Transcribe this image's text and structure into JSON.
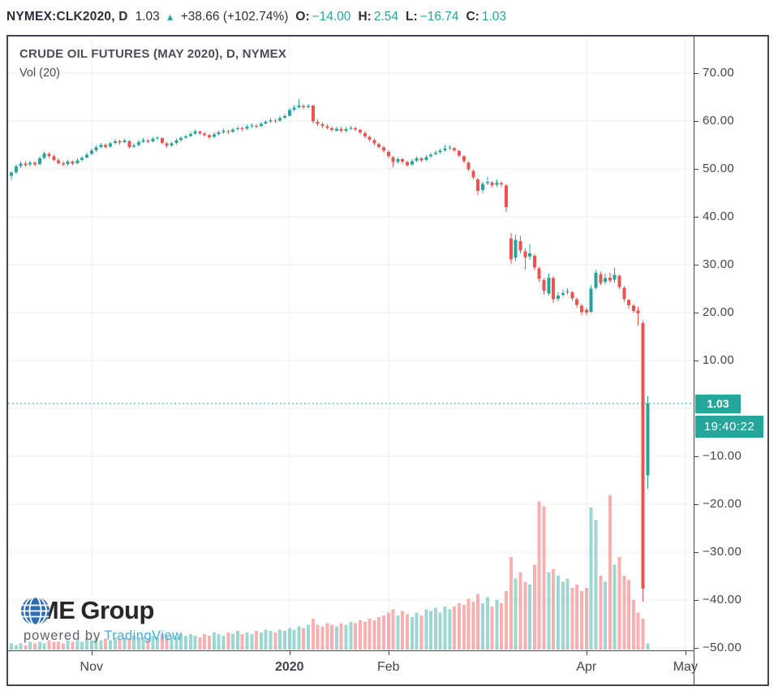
{
  "header": {
    "symbol_interval": "NYMEX:CLK2020, D",
    "last_price": "1.03",
    "up_arrow": "▲",
    "change": "+38.66 (+102.74%)",
    "ohlc": [
      {
        "label": "O:",
        "value": "−14.00"
      },
      {
        "label": "H:",
        "value": "2.54"
      },
      {
        "label": "L:",
        "value": "−16.74"
      },
      {
        "label": "C:",
        "value": "1.03"
      }
    ]
  },
  "legend": {
    "title": "CRUDE OIL FUTURES (MAY 2020), D, NYMEX",
    "indicator": "Vol (20)"
  },
  "price_axis": {
    "current_price_label": "1.03",
    "countdown": "19:40:22",
    "ticks": [
      {
        "label": "70.00",
        "price": 70
      },
      {
        "label": "60.00",
        "price": 60
      },
      {
        "label": "50.00",
        "price": 50
      },
      {
        "label": "40.00",
        "price": 40
      },
      {
        "label": "30.00",
        "price": 30
      },
      {
        "label": "20.00",
        "price": 20
      },
      {
        "label": "10.00",
        "price": 10
      },
      {
        "label": "−10.00",
        "price": -10
      },
      {
        "label": "−20.00",
        "price": -20
      },
      {
        "label": "−30.00",
        "price": -30
      },
      {
        "label": "−40.00",
        "price": -40
      },
      {
        "label": "−50.00",
        "price": -50
      }
    ]
  },
  "time_axis": {
    "ticks": [
      {
        "label": "Nov",
        "i": 17,
        "bold": false
      },
      {
        "label": "2020",
        "i": 59,
        "bold": true
      },
      {
        "label": "Feb",
        "i": 80,
        "bold": false
      },
      {
        "label": "Apr",
        "i": 122,
        "bold": false
      },
      {
        "label": "May",
        "i": 143,
        "bold": false
      }
    ]
  },
  "branding": {
    "cme": "CME",
    "group": "Group",
    "powered_by": "powered by",
    "vendor": "TradingView"
  },
  "colors": {
    "up": "#26a69a",
    "down": "#ef5350",
    "volume_up": "#26a69a",
    "volume_down": "#ef5350",
    "grid": "#e8eef4",
    "frame": "#434651",
    "text_dark": "#2a2e39",
    "axis_text": "#42464e",
    "accent_teal": "#26a69a",
    "tv_blue": "#3cb1e3",
    "cme_blue": "#2e6cb6"
  },
  "chart_data": {
    "type": "candlestick+volume",
    "symbol": "NYMEX:CLK2020",
    "title": "CRUDE OIL FUTURES (MAY 2020), D, NYMEX",
    "interval": "D",
    "date_range": "Oct 2019 – Apr 21 2020",
    "x_axis_labels": [
      "Nov",
      "2020",
      "Feb",
      "Apr",
      "May"
    ],
    "y_axis_range": [
      -52,
      73
    ],
    "grid": true,
    "current_price": 1.03,
    "current_price_line_style": "dashed",
    "countdown": "19:40:22",
    "session_ohlc": {
      "open": -14.0,
      "high": 2.54,
      "low": -16.74,
      "close": 1.03,
      "change": 38.66,
      "change_pct": 102.74
    },
    "volume_ma_label": "Vol (20)",
    "candles_format": [
      "open",
      "high",
      "low",
      "close",
      "volume_rel_0_100"
    ],
    "candles": [
      [
        48.6,
        49.5,
        47.7,
        49.2,
        4
      ],
      [
        49.3,
        50.9,
        49.0,
        50.5,
        3
      ],
      [
        50.6,
        51.5,
        50.2,
        51.1,
        4
      ],
      [
        51.1,
        51.6,
        50.4,
        50.8,
        3
      ],
      [
        50.9,
        51.7,
        50.5,
        51.3,
        5
      ],
      [
        51.3,
        51.6,
        50.5,
        50.9,
        4
      ],
      [
        51.0,
        52.6,
        50.8,
        52.2,
        5
      ],
      [
        52.3,
        53.6,
        52.0,
        53.2,
        4
      ],
      [
        53.1,
        53.5,
        52.3,
        52.7,
        6
      ],
      [
        52.6,
        53.0,
        51.6,
        51.9,
        5
      ],
      [
        51.8,
        52.2,
        50.9,
        51.2,
        5
      ],
      [
        51.2,
        51.6,
        50.5,
        50.9,
        4
      ],
      [
        51.0,
        51.9,
        50.7,
        51.5,
        6
      ],
      [
        51.5,
        51.8,
        50.8,
        51.1,
        5
      ],
      [
        51.2,
        52.2,
        51.0,
        51.8,
        6
      ],
      [
        51.9,
        52.7,
        51.6,
        52.3,
        5
      ],
      [
        52.4,
        53.4,
        52.1,
        53.0,
        7
      ],
      [
        53.1,
        54.2,
        52.9,
        53.8,
        6
      ],
      [
        53.9,
        54.9,
        53.6,
        54.5,
        7
      ],
      [
        54.6,
        55.4,
        54.3,
        55.0,
        6
      ],
      [
        55.0,
        55.3,
        54.2,
        54.6,
        7
      ],
      [
        54.7,
        55.7,
        54.4,
        55.3,
        6
      ],
      [
        55.4,
        56.2,
        55.1,
        55.8,
        8
      ],
      [
        55.8,
        56.1,
        55.1,
        55.5,
        7
      ],
      [
        55.6,
        56.3,
        55.3,
        55.9,
        8
      ],
      [
        55.8,
        56.0,
        54.2,
        54.6,
        7
      ],
      [
        54.7,
        55.3,
        54.3,
        54.9,
        9
      ],
      [
        55.0,
        56.0,
        54.7,
        55.6,
        8
      ],
      [
        55.7,
        56.4,
        55.4,
        56.0,
        8
      ],
      [
        55.9,
        56.2,
        55.3,
        55.7,
        7
      ],
      [
        55.8,
        56.7,
        55.5,
        56.3,
        9
      ],
      [
        56.4,
        56.9,
        56.0,
        56.5,
        8
      ],
      [
        56.4,
        56.6,
        55.1,
        55.4,
        10
      ],
      [
        55.3,
        55.6,
        54.4,
        54.8,
        9
      ],
      [
        54.9,
        55.7,
        54.6,
        55.3,
        9
      ],
      [
        55.4,
        56.3,
        55.1,
        55.9,
        8
      ],
      [
        56.0,
        56.8,
        55.7,
        56.4,
        10
      ],
      [
        56.5,
        57.2,
        56.2,
        56.8,
        9
      ],
      [
        56.9,
        57.7,
        56.6,
        57.3,
        10
      ],
      [
        57.4,
        58.2,
        57.1,
        57.8,
        9
      ],
      [
        57.8,
        58.0,
        57.1,
        57.5,
        8
      ],
      [
        57.4,
        57.7,
        56.7,
        57.0,
        10
      ],
      [
        57.0,
        57.3,
        56.2,
        56.6,
        9
      ],
      [
        56.7,
        57.6,
        56.4,
        57.2,
        11
      ],
      [
        57.3,
        58.0,
        57.0,
        57.6,
        10
      ],
      [
        57.7,
        58.4,
        57.4,
        58.0,
        9
      ],
      [
        57.9,
        58.2,
        57.3,
        57.7,
        11
      ],
      [
        57.8,
        58.6,
        57.5,
        58.2,
        10
      ],
      [
        58.3,
        58.9,
        58.0,
        58.5,
        12
      ],
      [
        58.5,
        58.8,
        57.9,
        58.3,
        10
      ],
      [
        58.4,
        59.2,
        58.1,
        58.8,
        11
      ],
      [
        58.9,
        59.5,
        58.6,
        59.1,
        10
      ],
      [
        59.0,
        59.3,
        58.5,
        58.9,
        12
      ],
      [
        59.0,
        59.8,
        58.7,
        59.4,
        11
      ],
      [
        59.5,
        60.2,
        59.2,
        59.8,
        13
      ],
      [
        59.9,
        60.6,
        59.6,
        60.2,
        12
      ],
      [
        60.1,
        60.4,
        59.6,
        60.0,
        11
      ],
      [
        60.1,
        61.0,
        59.8,
        60.6,
        13
      ],
      [
        60.7,
        61.4,
        60.4,
        61.0,
        12
      ],
      [
        61.1,
        62.7,
        60.9,
        62.3,
        14
      ],
      [
        62.4,
        63.3,
        62.0,
        62.8,
        13
      ],
      [
        62.9,
        64.6,
        62.6,
        63.2,
        15
      ],
      [
        63.1,
        63.5,
        62.5,
        62.9,
        14
      ],
      [
        62.9,
        63.6,
        62.6,
        63.1,
        16
      ],
      [
        63.2,
        63.4,
        59.5,
        59.9,
        20
      ],
      [
        59.8,
        60.3,
        59.0,
        59.4,
        16
      ],
      [
        59.3,
        59.7,
        58.6,
        59.0,
        15
      ],
      [
        58.9,
        59.3,
        58.2,
        58.6,
        17
      ],
      [
        58.5,
        58.9,
        57.7,
        58.1,
        16
      ],
      [
        58.0,
        58.8,
        57.8,
        58.4,
        15
      ],
      [
        58.3,
        58.7,
        57.6,
        58.0,
        17
      ],
      [
        58.0,
        58.7,
        57.7,
        58.3,
        16
      ],
      [
        58.4,
        59.0,
        58.1,
        58.6,
        18
      ],
      [
        58.5,
        58.8,
        57.9,
        58.2,
        17
      ],
      [
        58.1,
        58.4,
        57.2,
        57.6,
        19
      ],
      [
        57.5,
        57.8,
        56.4,
        56.8,
        18
      ],
      [
        56.7,
        57.0,
        55.7,
        56.1,
        20
      ],
      [
        56.0,
        56.3,
        54.9,
        55.3,
        19
      ],
      [
        55.2,
        55.5,
        54.2,
        54.6,
        21
      ],
      [
        54.5,
        54.8,
        53.4,
        53.8,
        22
      ],
      [
        53.6,
        53.9,
        52.2,
        52.6,
        24
      ],
      [
        52.4,
        52.7,
        50.3,
        51.4,
        26
      ],
      [
        51.4,
        52.4,
        51.1,
        52.0,
        22
      ],
      [
        52.0,
        52.3,
        51.1,
        51.5,
        25
      ],
      [
        51.4,
        51.7,
        50.4,
        50.8,
        23
      ],
      [
        50.9,
        52.0,
        50.6,
        51.6,
        21
      ],
      [
        51.7,
        52.6,
        51.4,
        52.2,
        24
      ],
      [
        52.2,
        52.5,
        51.4,
        51.8,
        22
      ],
      [
        51.9,
        52.9,
        51.6,
        52.5,
        26
      ],
      [
        52.6,
        53.4,
        52.3,
        53.0,
        25
      ],
      [
        53.1,
        53.8,
        52.8,
        53.4,
        27
      ],
      [
        53.5,
        54.2,
        53.2,
        53.8,
        24
      ],
      [
        53.9,
        55.0,
        53.6,
        54.2,
        28
      ],
      [
        54.3,
        54.9,
        54.0,
        54.5,
        26
      ],
      [
        54.3,
        54.6,
        53.5,
        53.9,
        28
      ],
      [
        53.7,
        54.0,
        52.4,
        52.8,
        30
      ],
      [
        52.6,
        52.9,
        51.2,
        51.6,
        29
      ],
      [
        51.3,
        51.6,
        49.5,
        49.9,
        33
      ],
      [
        49.6,
        49.9,
        47.8,
        48.2,
        31
      ],
      [
        47.8,
        48.1,
        44.5,
        45.4,
        36
      ],
      [
        45.6,
        47.4,
        44.9,
        46.9,
        30
      ],
      [
        47.0,
        48.3,
        46.6,
        47.3,
        34
      ],
      [
        47.1,
        47.5,
        46.2,
        46.6,
        28
      ],
      [
        46.7,
        47.8,
        46.3,
        47.1,
        32
      ],
      [
        47.0,
        47.4,
        46.3,
        46.8,
        30
      ],
      [
        46.5,
        46.9,
        41.0,
        42.0,
        38
      ],
      [
        35.5,
        36.6,
        30.1,
        31.1,
        60
      ],
      [
        31.4,
        36.3,
        30.8,
        35.2,
        46
      ],
      [
        34.9,
        36.0,
        32.4,
        33.0,
        50
      ],
      [
        32.8,
        33.4,
        29.0,
        31.5,
        44
      ],
      [
        31.7,
        34.2,
        31.0,
        32.4,
        42
      ],
      [
        31.9,
        32.3,
        28.9,
        29.4,
        55
      ],
      [
        29.2,
        29.6,
        26.4,
        27.0,
        96
      ],
      [
        26.8,
        27.2,
        23.8,
        24.6,
        93
      ],
      [
        24.0,
        28.2,
        23.6,
        27.3,
        50
      ],
      [
        27.2,
        27.6,
        22.0,
        22.8,
        52
      ],
      [
        22.9,
        24.2,
        22.4,
        23.6,
        48
      ],
      [
        23.7,
        24.8,
        23.3,
        24.1,
        44
      ],
      [
        24.2,
        25.1,
        23.7,
        24.4,
        46
      ],
      [
        24.2,
        24.5,
        22.5,
        23.0,
        40
      ],
      [
        22.8,
        23.1,
        21.0,
        21.6,
        42
      ],
      [
        21.4,
        21.8,
        19.4,
        20.1,
        38
      ],
      [
        20.6,
        21.0,
        19.4,
        20.0,
        40
      ],
      [
        20.2,
        25.7,
        19.9,
        25.0,
        92
      ],
      [
        25.2,
        28.9,
        24.8,
        28.3,
        84
      ],
      [
        28.0,
        28.6,
        25.8,
        26.2,
        48
      ],
      [
        26.4,
        28.1,
        25.9,
        27.2,
        44
      ],
      [
        27.3,
        28.3,
        26.2,
        26.7,
        100
      ],
      [
        26.9,
        29.4,
        26.3,
        27.9,
        55
      ],
      [
        27.7,
        27.9,
        24.9,
        25.3,
        60
      ],
      [
        25.2,
        25.5,
        22.3,
        22.8,
        48
      ],
      [
        22.6,
        22.9,
        20.8,
        21.5,
        45
      ],
      [
        21.4,
        21.8,
        19.9,
        20.3,
        32
      ],
      [
        20.4,
        21.3,
        17.3,
        19.8,
        24
      ],
      [
        17.8,
        18.3,
        -40.32,
        -37.63,
        20
      ],
      [
        -14.0,
        2.54,
        -16.74,
        1.03,
        4
      ]
    ]
  }
}
